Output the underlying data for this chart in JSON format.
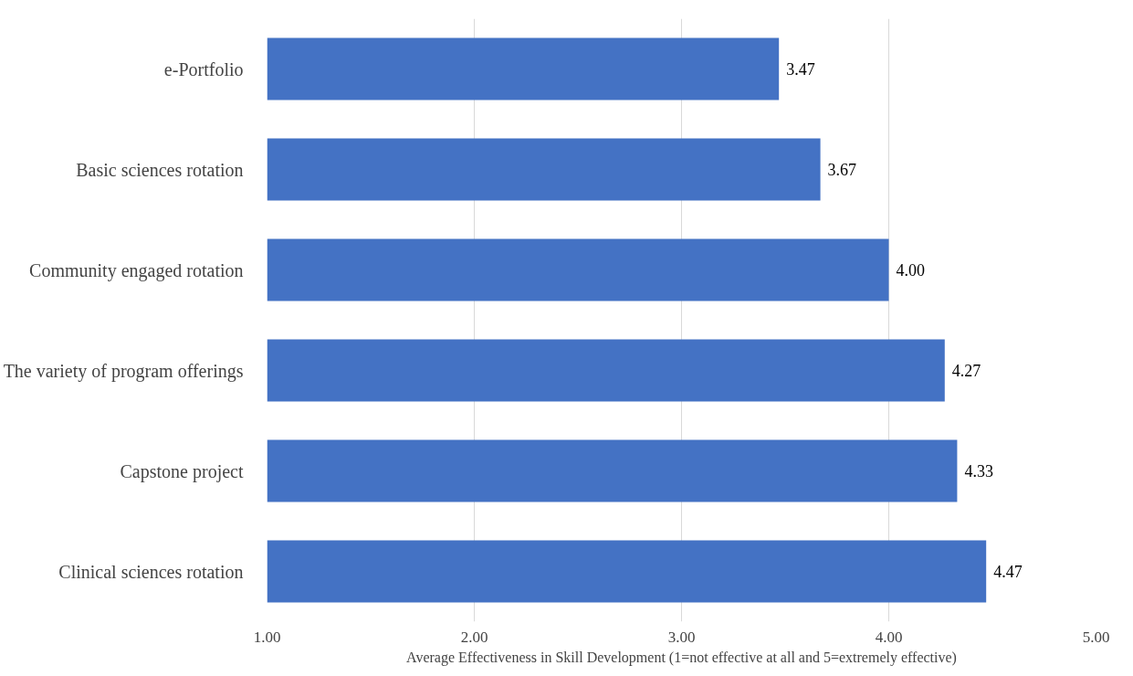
{
  "chart_data": {
    "type": "bar",
    "orientation": "horizontal",
    "xlabel": "Average Effectiveness in Skill Development (1=not effective at all and 5=extremely effective)",
    "categories": [
      "e-Portfolio",
      "Basic sciences rotation",
      "Community engaged rotation",
      "The variety of program offerings",
      "Capstone project",
      "Clinical sciences rotation"
    ],
    "values": [
      3.47,
      3.67,
      4.0,
      4.27,
      4.33,
      4.47
    ],
    "value_labels": [
      "3.47",
      "3.67",
      "4.00",
      "4.27",
      "4.33",
      "4.47"
    ],
    "color": "#4472c4",
    "xlim": [
      1,
      5
    ],
    "xticks": [
      {
        "value": 1,
        "label": "1.00"
      },
      {
        "value": 2,
        "label": "2.00"
      },
      {
        "value": 3,
        "label": "3.00"
      },
      {
        "value": 4,
        "label": "4.00"
      },
      {
        "value": 5,
        "label": "5.00"
      }
    ],
    "grid": "x"
  }
}
